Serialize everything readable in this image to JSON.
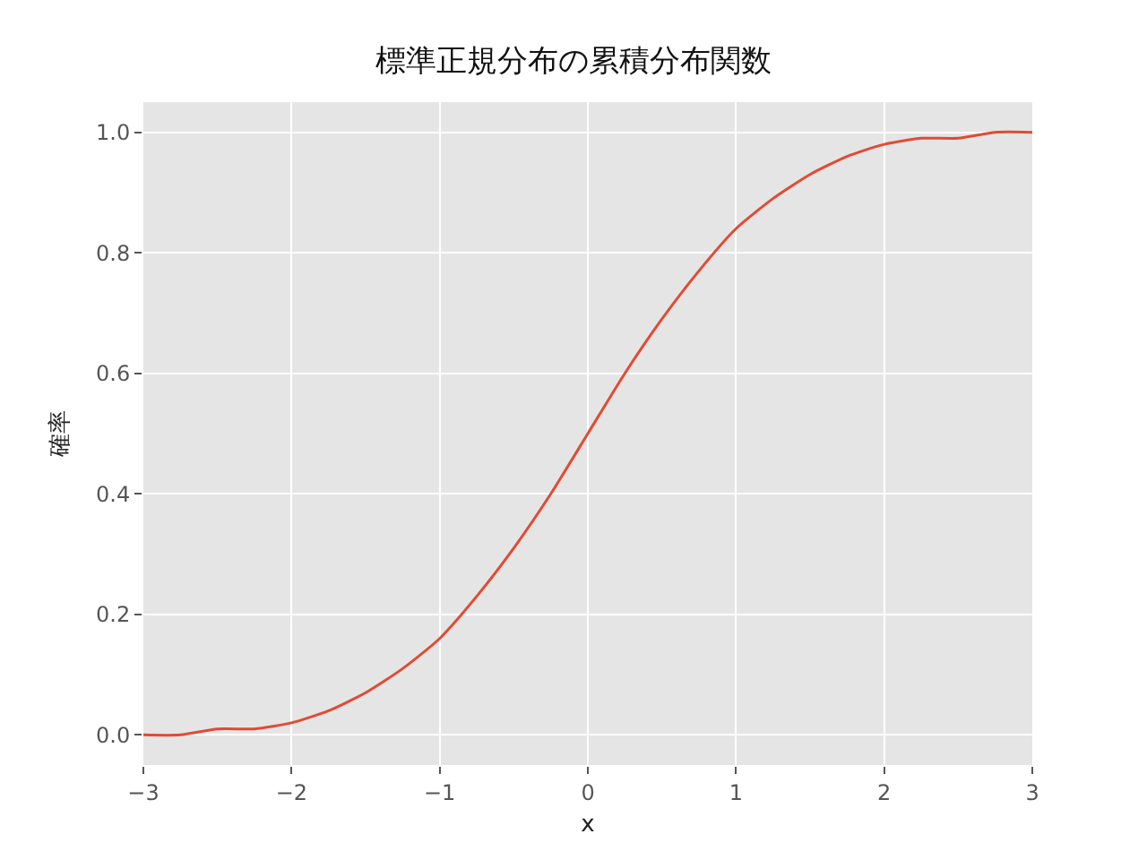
{
  "chart_data": {
    "type": "line",
    "title": "標準正規分布の累積分布関数",
    "xlabel": "x",
    "ylabel": "確率",
    "x": [
      -3,
      -2.75,
      -2.5,
      -2.25,
      -2,
      -1.75,
      -1.5,
      -1.25,
      -1,
      -0.75,
      -0.5,
      -0.25,
      0,
      0.25,
      0.5,
      0.75,
      1,
      1.25,
      1.5,
      1.75,
      2,
      2.25,
      2.5,
      2.75,
      3
    ],
    "series": [
      {
        "color": "#e24a33",
        "values": [
          0.0,
          0.0,
          0.01,
          0.01,
          0.02,
          0.04,
          0.07,
          0.11,
          0.16,
          0.23,
          0.31,
          0.4,
          0.5,
          0.6,
          0.69,
          0.77,
          0.84,
          0.89,
          0.93,
          0.96,
          0.98,
          0.99,
          0.99,
          1.0,
          1.0
        ]
      }
    ],
    "xlim": [
      -3,
      3
    ],
    "ylim": [
      -0.05,
      1.05
    ],
    "xticks": [
      {
        "value": -3,
        "label": "−3"
      },
      {
        "value": -2,
        "label": "−2"
      },
      {
        "value": -1,
        "label": "−1"
      },
      0,
      1,
      2,
      3
    ],
    "yticks": [
      {
        "value": 0,
        "label": "0.0"
      },
      {
        "value": 0.2,
        "label": "0.2"
      },
      {
        "value": 0.4,
        "label": "0.4"
      },
      {
        "value": 0.6,
        "label": "0.6"
      },
      {
        "value": 0.8,
        "label": "0.8"
      },
      {
        "value": 1,
        "label": "1.0"
      }
    ],
    "grid": true,
    "marker": "none",
    "line_style": "solid"
  }
}
